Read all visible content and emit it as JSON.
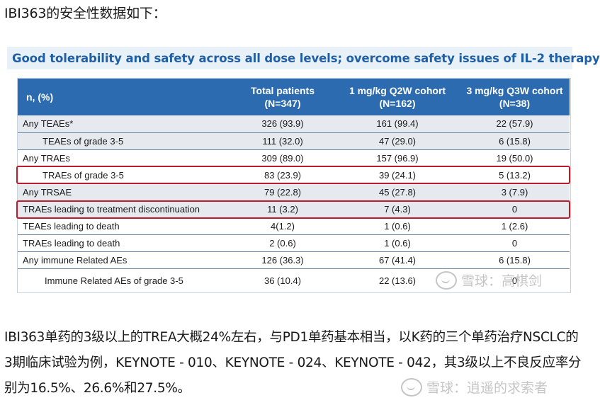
{
  "intro_text": "IBI363的安全性数据如下：",
  "banner_title": "Good tolerability and safety across all dose levels; overcome safety issues of IL-2 therapy",
  "table": {
    "headers": [
      {
        "line1": "n, (%)",
        "line2": ""
      },
      {
        "line1": "Total patients",
        "line2": "(N=347)"
      },
      {
        "line1": "1 mg/kg Q2W cohort",
        "line2": "(N=162)"
      },
      {
        "line1": "3 mg/kg Q3W cohort",
        "line2": "(N=38)"
      }
    ],
    "rows": [
      {
        "label": "Any TEAEs*",
        "total": "326 (93.9)",
        "q2w": "161 (99.4)",
        "q3w": "22 (57.9)"
      },
      {
        "label": "TEAEs of grade 3-5",
        "total": "111 (32.0)",
        "q2w": "47 (29.0)",
        "q3w": "6 (15.8)"
      },
      {
        "label": "Any TRAEs",
        "total": "309 (89.0)",
        "q2w": "157 (96.9)",
        "q3w": "19 (50.0)"
      },
      {
        "label": "TRAEs of grade 3-5",
        "total": "83 (23.9)",
        "q2w": "39 (24.1)",
        "q3w": "5 (13.2)"
      },
      {
        "label": "Any TRSAE",
        "total": "79 (22.8)",
        "q2w": "45 (27.8)",
        "q3w": "3 (7.9)"
      },
      {
        "label": "TRAEs leading to treatment discontinuation",
        "total": "11 (3.2)",
        "q2w": "7 (4.3)",
        "q3w": "0"
      },
      {
        "label": "TEAEs leading to death",
        "total": "4(1.2)",
        "q2w": "1 (0.6)",
        "q3w": "1 (2.6)"
      },
      {
        "label": "TRAEs leading to death",
        "total": "2 (0.6)",
        "q2w": "1 (0.6)",
        "q3w": "0"
      },
      {
        "label": "Any immune Related AEs",
        "total": "126 (36.3)",
        "q2w": "67 (41.4)",
        "q3w": "6 (15.8)"
      },
      {
        "label": "Immune Related AEs of grade 3-5",
        "total": "36 (10.4)",
        "q2w": "22 (13.6)",
        "q3w": "0"
      }
    ]
  },
  "paragraph": "IBI363单药的3级以上的TREA大概24%左右，与PD1单药基本相当，以K药的三个单药治疗NSCLC的3期临床试验为例，KEYNOTE - 010、KEYNOTE - 024、KEYNOTE - 042，其3级以上不良反应率分别为16.5%、26.6%和27.5%。",
  "watermarks": {
    "upper": "雪球：高棋剑",
    "lower": "雪球：逍遥的求索者"
  },
  "colors": {
    "header_blue": "#2d6bb0",
    "banner_text": "#1f5fa6",
    "highlight_red": "#c0192b",
    "shaded_row": "#e6e9ee"
  }
}
